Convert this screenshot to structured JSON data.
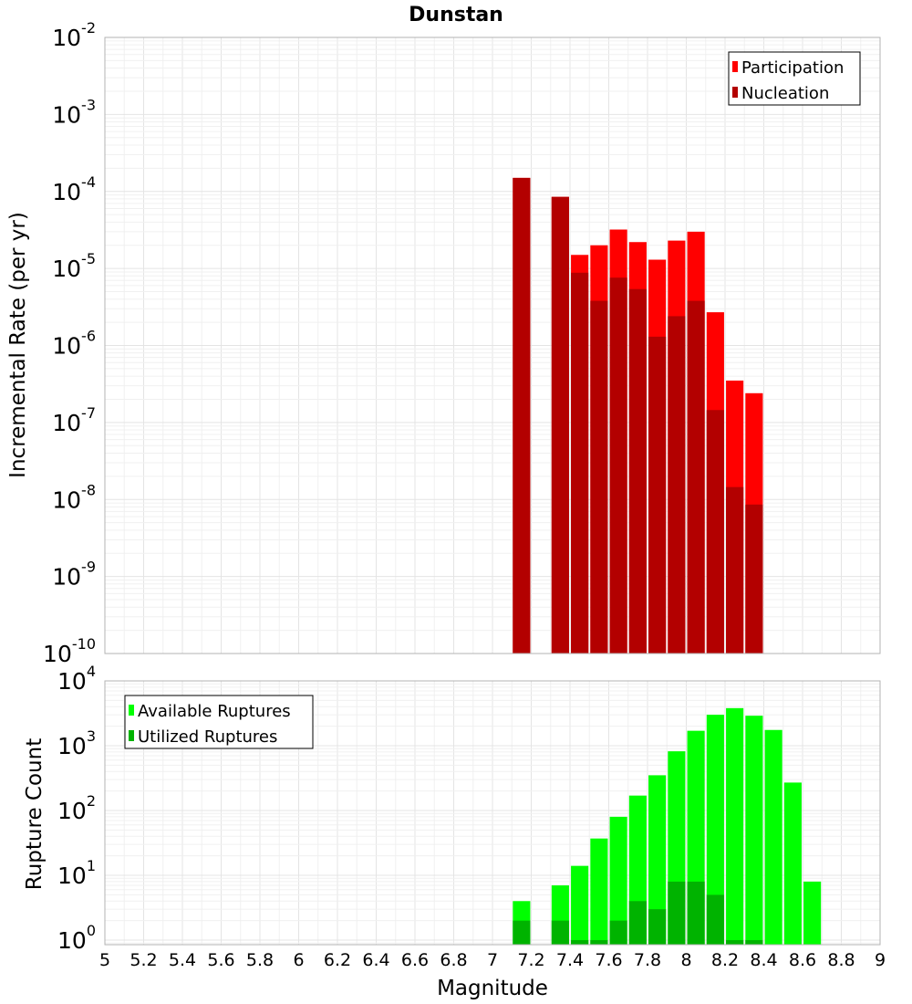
{
  "chart_data": [
    {
      "type": "bar",
      "id": "rate-panel",
      "title": "Dunstan",
      "xlabel": "Magnitude",
      "ylabel": "Incremental Rate (per yr)",
      "yscale": "log",
      "xlim": [
        5,
        9
      ],
      "ylim_exp": [
        -10,
        -2
      ],
      "y_ticks": [
        {
          "base": "10",
          "exp": "-10"
        },
        {
          "base": "10",
          "exp": "-9"
        },
        {
          "base": "10",
          "exp": "-8"
        },
        {
          "base": "10",
          "exp": "-7"
        },
        {
          "base": "10",
          "exp": "-6"
        },
        {
          "base": "10",
          "exp": "-5"
        },
        {
          "base": "10",
          "exp": "-4"
        },
        {
          "base": "10",
          "exp": "-3"
        },
        {
          "base": "10",
          "exp": "-2"
        }
      ],
      "legend": {
        "position": "top-right"
      },
      "x": [
        7.15,
        7.35,
        7.45,
        7.55,
        7.65,
        7.75,
        7.85,
        7.95,
        8.05,
        8.15,
        8.25,
        8.35
      ],
      "series": [
        {
          "name": "Participation",
          "color": "#ff0000",
          "values": [
            0.00015,
            8.5e-05,
            1.5e-05,
            2e-05,
            3.2e-05,
            2.2e-05,
            1.3e-05,
            2.3e-05,
            3e-05,
            2.7e-06,
            3.5e-07,
            2.4e-07
          ]
        },
        {
          "name": "Nucleation",
          "color": "#b30000",
          "values": [
            0.00015,
            8.5e-05,
            8.8e-06,
            3.8e-06,
            7.6e-06,
            5.4e-06,
            1.3e-06,
            2.4e-06,
            3.8e-06,
            1.45e-07,
            1.45e-08,
            8.6e-09
          ]
        }
      ]
    },
    {
      "type": "bar",
      "id": "count-panel",
      "xlabel": "Magnitude",
      "ylabel": "Rupture Count",
      "yscale": "log",
      "xlim": [
        5,
        9
      ],
      "ylim_exp": [
        -0.07,
        4
      ],
      "y_ticks": [
        {
          "base": "10",
          "exp": "0"
        },
        {
          "base": "10",
          "exp": "1"
        },
        {
          "base": "10",
          "exp": "2"
        },
        {
          "base": "10",
          "exp": "3"
        },
        {
          "base": "10",
          "exp": "4"
        }
      ],
      "x_ticks": [
        "5",
        "5.2",
        "5.4",
        "5.6",
        "5.8",
        "6",
        "6.2",
        "6.4",
        "6.6",
        "6.8",
        "7",
        "7.2",
        "7.4",
        "7.6",
        "7.8",
        "8",
        "8.2",
        "8.4",
        "8.6",
        "8.8",
        "9"
      ],
      "legend": {
        "position": "top-left"
      },
      "x": [
        7.15,
        7.35,
        7.45,
        7.55,
        7.65,
        7.75,
        7.85,
        7.95,
        8.05,
        8.15,
        8.25,
        8.35,
        8.45,
        8.55,
        8.65
      ],
      "series": [
        {
          "name": "Available Ruptures",
          "color": "#00ff00",
          "values": [
            4,
            7,
            14,
            37,
            80,
            170,
            350,
            820,
            1700,
            3000,
            3800,
            2900,
            1750,
            270,
            8
          ]
        },
        {
          "name": "Utilized Ruptures",
          "color": "#00b300",
          "values": [
            2,
            2,
            1,
            1,
            2,
            4,
            3,
            8,
            8,
            5,
            1,
            1,
            null,
            null,
            null
          ]
        }
      ]
    }
  ]
}
